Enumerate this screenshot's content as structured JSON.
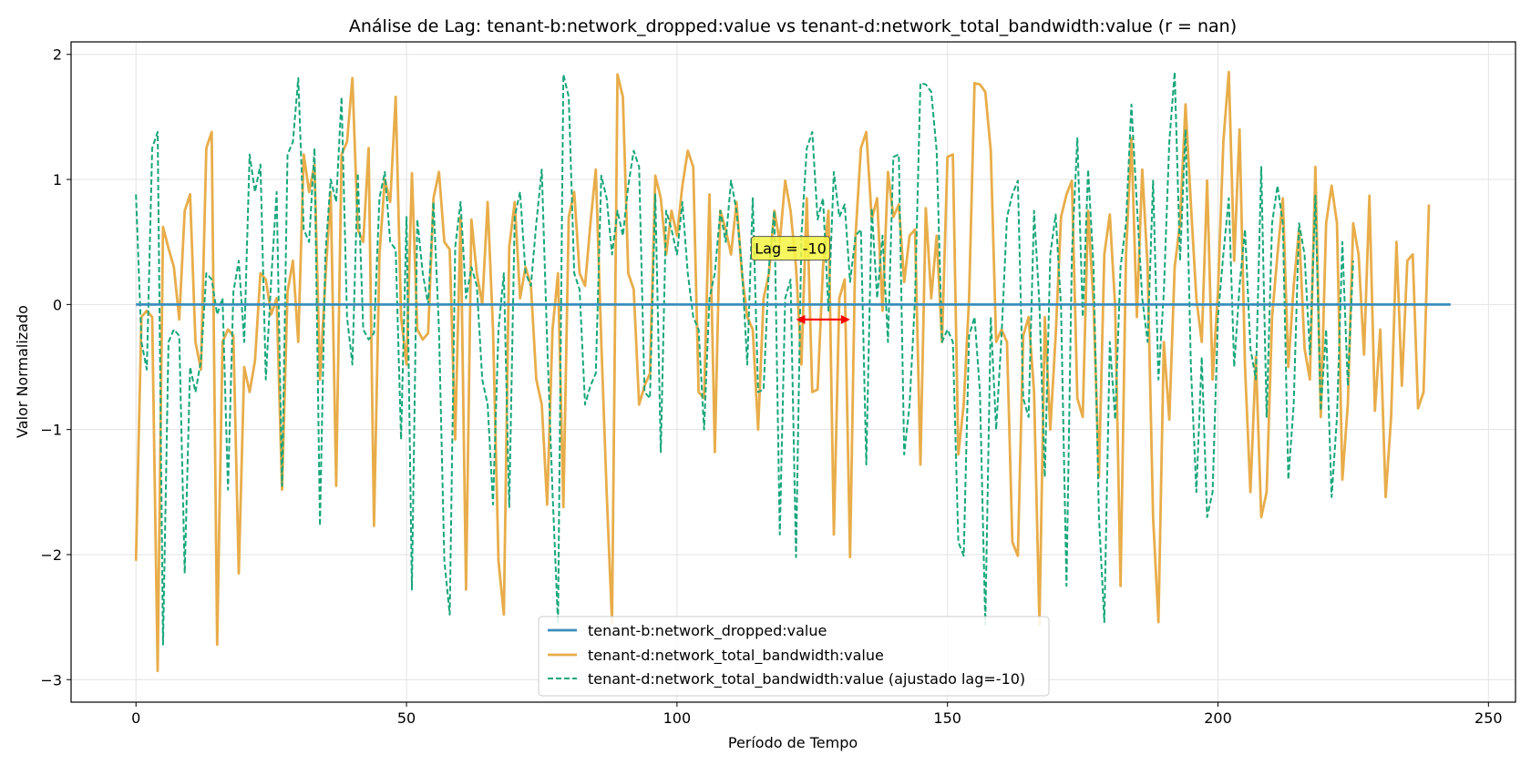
{
  "chart_data": {
    "type": "line",
    "title": "Análise de Lag: tenant-b:network_dropped:value vs tenant-d:network_total_bandwidth:value (r = nan)",
    "xlabel": "Período de Tempo",
    "ylabel": "Valor Normalizado",
    "xlim": [
      -12,
      255
    ],
    "ylim": [
      -3.18,
      2.1
    ],
    "xticks": [
      0,
      50,
      100,
      150,
      200,
      250
    ],
    "xtick_labels": [
      "0",
      "50",
      "100",
      "150",
      "200",
      "250"
    ],
    "yticks": [
      2,
      1,
      0,
      -1,
      -2,
      -3
    ],
    "ytick_labels": [
      "2",
      "1",
      "0",
      "−1",
      "−2",
      "−3"
    ],
    "grid": true,
    "legend_position": "bottom-center",
    "annotation": {
      "text": "Lag = -10",
      "x": 121,
      "y": 0.45,
      "arrow_from": [
        122,
        -0.12
      ],
      "arrow_to": [
        132,
        -0.12
      ],
      "box_color": "#f5f542",
      "arrow_color": "#ff0000"
    },
    "series": [
      {
        "name": "tenant-b:network_dropped:value",
        "color": "#3a8ebd",
        "style": "solid",
        "x_start": 0,
        "x_end": 243,
        "constant_value": 0
      },
      {
        "name": "tenant-d:network_total_bandwidth:value",
        "color": "#e8ad4a",
        "style": "solid",
        "x_start": 0,
        "values": [
          -2.05,
          -0.1,
          -0.05,
          -0.1,
          -2.93,
          0.62,
          0.45,
          0.3,
          -0.12,
          0.75,
          0.88,
          -0.3,
          -0.52,
          1.25,
          1.38,
          -2.72,
          -0.3,
          -0.2,
          -0.25,
          -2.15,
          -0.5,
          -0.7,
          -0.45,
          0.25,
          0.2,
          -0.08,
          0.05,
          -1.48,
          0.1,
          0.35,
          -0.3,
          1.2,
          0.9,
          1.12,
          -0.6,
          0.2,
          0.9,
          -1.45,
          1.2,
          1.3,
          1.81,
          0.6,
          0.5,
          1.25,
          -1.77,
          0.4,
          1.0,
          0.82,
          1.66,
          -0.1,
          -0.48,
          1.05,
          -0.2,
          -0.28,
          -0.23,
          0.85,
          1.06,
          0.5,
          0.44,
          -1.08,
          0.7,
          -2.28,
          0.68,
          0.25,
          0.0,
          0.82,
          -0.2,
          -2.05,
          -2.48,
          0.46,
          0.82,
          0.05,
          0.3,
          0.15,
          -0.6,
          -0.8,
          -1.6,
          -0.2,
          0.25,
          -1.62,
          0.7,
          0.9,
          0.25,
          0.15,
          0.65,
          1.08,
          -0.3,
          -1.5,
          -2.55,
          1.84,
          1.66,
          0.25,
          0.12,
          -0.8,
          -0.65,
          -0.55,
          1.03,
          0.85,
          0.4,
          0.75,
          0.55,
          0.95,
          1.23,
          1.1,
          -0.7,
          -0.75,
          0.88,
          -1.18,
          0.75,
          0.6,
          0.4,
          0.82,
          0.25,
          -0.1,
          -0.2,
          -1.0,
          0.05,
          0.25,
          0.75,
          0.5,
          0.99,
          0.75,
          0.3,
          -0.48,
          0.85,
          -0.7,
          -0.68,
          0.3,
          0.75,
          -1.84,
          0.05,
          0.2,
          -2.02,
          0.55,
          1.25,
          1.38,
          0.68,
          0.85,
          -0.05,
          1.06,
          0.7,
          0.8,
          0.18,
          0.55,
          0.6,
          -1.28,
          0.77,
          0.05,
          0.55,
          -0.3,
          1.18,
          1.2,
          -1.2,
          -0.8,
          0.05,
          1.77,
          1.76,
          1.7,
          1.23,
          -0.3,
          -0.2,
          -0.3,
          -1.9,
          -2.01,
          -0.25,
          -0.1,
          -0.7,
          -2.56,
          -0.1,
          -1.0,
          -0.25,
          0.7,
          0.88,
          0.99,
          -0.75,
          -0.9,
          0.75,
          0.0,
          -1.38,
          0.4,
          0.72,
          -0.02,
          -2.25,
          0.4,
          1.33,
          -0.1,
          1.08,
          0.3,
          -1.7,
          -2.54,
          -0.3,
          -0.92,
          0.3,
          0.65,
          1.6,
          0.8,
          0.05,
          -0.3,
          0.99,
          -0.6,
          0.1,
          1.3,
          1.86,
          0.35,
          1.4,
          -0.5,
          -1.5,
          -0.42,
          -1.7,
          -1.5,
          -0.1,
          0.4,
          0.85,
          -0.5,
          0.15,
          0.6,
          -0.35,
          -0.6,
          1.1,
          -0.9,
          0.65,
          0.95,
          0.65,
          -1.4,
          -0.8,
          0.65,
          0.4,
          -0.4,
          0.87,
          -0.85,
          -0.2,
          -1.54,
          -0.9,
          0.5,
          -0.65,
          0.35,
          0.4,
          -0.83,
          -0.7,
          0.8
        ]
      },
      {
        "name": "tenant-d:network_total_bandwidth:value (ajustado lag=-10)",
        "color": "#17a67a",
        "style": "dashed",
        "x_start": 0,
        "values": [
          0.88,
          -0.3,
          -0.52,
          1.25,
          1.38,
          -2.72,
          -0.3,
          -0.2,
          -0.25,
          -2.15,
          -0.5,
          -0.7,
          -0.45,
          0.25,
          0.2,
          -0.08,
          0.05,
          -1.48,
          0.1,
          0.35,
          -0.3,
          1.2,
          0.9,
          1.12,
          -0.6,
          0.2,
          0.9,
          -1.45,
          1.2,
          1.3,
          1.81,
          0.6,
          0.5,
          1.25,
          -1.77,
          0.4,
          1.0,
          0.82,
          1.66,
          -0.1,
          -0.48,
          1.05,
          -0.2,
          -0.28,
          -0.23,
          0.85,
          1.06,
          0.5,
          0.44,
          -1.08,
          0.7,
          -2.28,
          0.68,
          0.25,
          0.0,
          0.82,
          -0.2,
          -2.05,
          -2.48,
          0.46,
          0.82,
          0.05,
          0.3,
          0.15,
          -0.6,
          -0.8,
          -1.6,
          -0.2,
          0.25,
          -1.62,
          0.7,
          0.9,
          0.25,
          0.15,
          0.65,
          1.08,
          -0.3,
          -1.5,
          -2.55,
          1.84,
          1.66,
          0.25,
          0.12,
          -0.8,
          -0.65,
          -0.55,
          1.03,
          0.85,
          0.4,
          0.75,
          0.55,
          0.95,
          1.23,
          1.1,
          -0.7,
          -0.75,
          0.88,
          -1.18,
          0.75,
          0.6,
          0.4,
          0.82,
          0.25,
          -0.1,
          -0.2,
          -1.0,
          0.05,
          0.25,
          0.75,
          0.5,
          0.99,
          0.75,
          0.3,
          -0.48,
          0.85,
          -0.7,
          -0.68,
          0.3,
          0.75,
          -1.84,
          0.05,
          0.2,
          -2.02,
          0.55,
          1.25,
          1.38,
          0.68,
          0.85,
          -0.05,
          1.06,
          0.7,
          0.8,
          0.18,
          0.55,
          0.6,
          -1.28,
          0.77,
          0.05,
          0.55,
          -0.3,
          1.18,
          1.2,
          -1.2,
          -0.8,
          0.05,
          1.77,
          1.76,
          1.7,
          1.23,
          -0.3,
          -0.2,
          -0.3,
          -1.9,
          -2.01,
          -0.25,
          -0.1,
          -0.7,
          -2.56,
          -0.1,
          -1.0,
          -0.25,
          0.7,
          0.88,
          0.99,
          -0.75,
          -0.9,
          0.75,
          0.0,
          -1.38,
          0.4,
          0.72,
          -0.02,
          -2.25,
          0.4,
          1.33,
          -0.1,
          1.08,
          0.3,
          -1.7,
          -2.54,
          -0.3,
          -0.92,
          0.3,
          0.65,
          1.6,
          0.8,
          0.05,
          -0.3,
          0.99,
          -0.6,
          0.1,
          1.3,
          1.86,
          0.35,
          1.4,
          -0.5,
          -1.5,
          -0.42,
          -1.7,
          -1.5,
          -0.1,
          0.4,
          0.85,
          -0.5,
          0.15,
          0.6,
          -0.35,
          -0.6,
          1.1,
          -0.9,
          0.65,
          0.95,
          0.65,
          -1.4,
          -0.8,
          0.65,
          0.4,
          -0.4,
          0.87,
          -0.85,
          -0.2,
          -1.54,
          -0.9,
          0.5,
          -0.65,
          0.35
        ]
      }
    ]
  }
}
